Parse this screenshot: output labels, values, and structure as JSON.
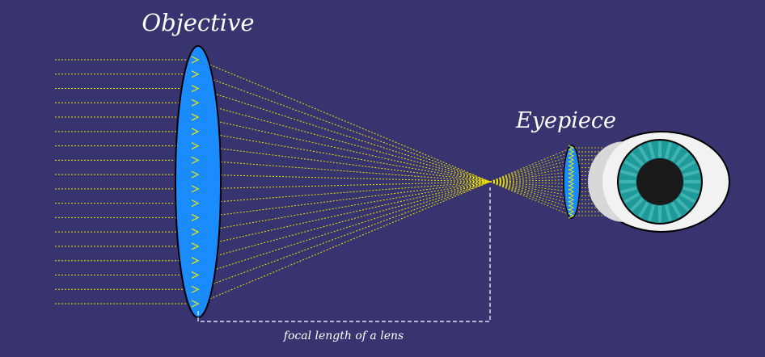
{
  "diagram": {
    "labels": {
      "objective": "Objective",
      "eyepiece": "Eyepiece",
      "focal_length": "focal length of a lens"
    },
    "colors": {
      "background": "#373470",
      "lens_fill": "#1a8cff",
      "ray": "#f2e600",
      "dimension_line": "#ffffff",
      "iris": "#1f9a9a",
      "pupil": "#1a1a1a",
      "sclera": "#f2f2f2"
    },
    "icons": [
      "objective-lens",
      "eyepiece-lens",
      "eye-icon"
    ],
    "incoming_ray_count": 18,
    "eyepiece_ray_count": 18
  }
}
